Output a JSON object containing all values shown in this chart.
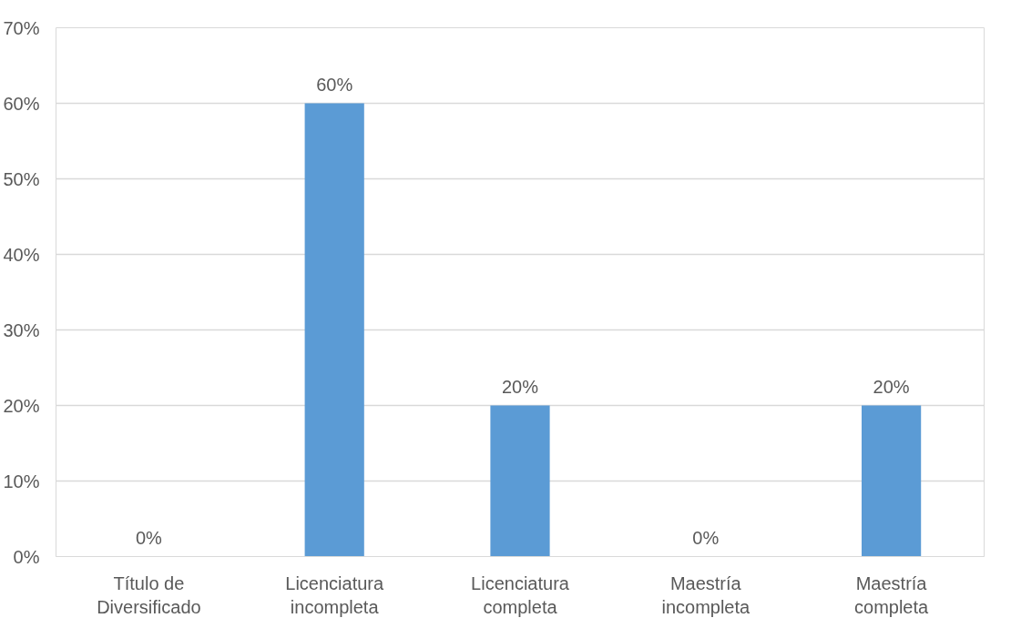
{
  "chart_data": {
    "type": "bar",
    "categories": [
      "Título de Diversificado",
      "Licenciatura incompleta",
      "Licenciatura completa",
      "Maestría incompleta",
      "Maestría completa"
    ],
    "values": [
      0,
      60,
      20,
      0,
      20
    ],
    "value_labels": [
      "0%",
      "60%",
      "20%",
      "0%",
      "20%"
    ],
    "color": "#5b9bd5",
    "ylim": [
      0,
      70
    ],
    "yticks": [
      {
        "value": 0,
        "label": "0%"
      },
      {
        "value": 10,
        "label": "10%"
      },
      {
        "value": 20,
        "label": "20%"
      },
      {
        "value": 30,
        "label": "30%"
      },
      {
        "value": 40,
        "label": "40%"
      },
      {
        "value": 50,
        "label": "50%"
      },
      {
        "value": 60,
        "label": "60%"
      },
      {
        "value": 70,
        "label": "70%"
      }
    ],
    "grid": "y"
  }
}
